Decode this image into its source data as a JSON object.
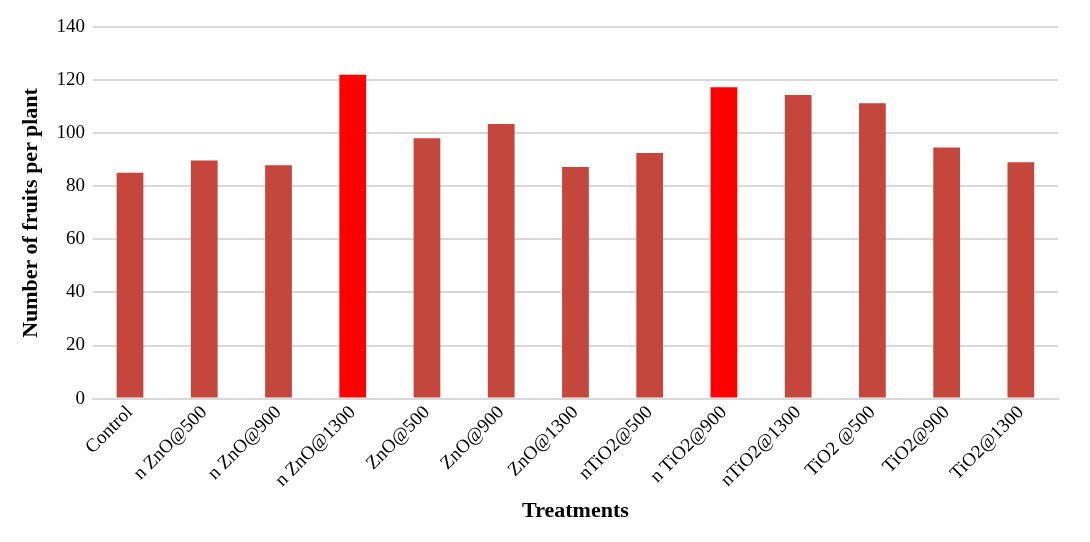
{
  "chart_data": {
    "type": "bar",
    "xlabel": "Treatments",
    "ylabel": "Number of fruits per plant",
    "categories": [
      "Control",
      "n ZnO@500",
      "n ZnO@900",
      "n ZnO@1300",
      "ZnO@500",
      "ZnO@900",
      "ZnO@1300",
      "nTiO2@500",
      "n TiO2@900",
      "nTiO2@1300",
      "TiO2 @500",
      "TiO2@900",
      "TiO2@1300"
    ],
    "values": [
      85.2,
      89.8,
      88.0,
      122.1,
      98.2,
      103.6,
      87.3,
      92.6,
      117.4,
      114.5,
      111.4,
      94.7,
      89.1
    ],
    "colors": [
      "#c5463c",
      "#c5463c",
      "#c5463c",
      "#ff0000",
      "#c5463c",
      "#c5463c",
      "#c5463c",
      "#c5463c",
      "#ff0000",
      "#c5463c",
      "#c5463c",
      "#c5463c",
      "#c5463c"
    ],
    "ylim": [
      0,
      140
    ],
    "yticks": [
      0,
      20,
      40,
      60,
      80,
      100,
      120,
      140
    ],
    "grid": "y",
    "legend": false
  }
}
